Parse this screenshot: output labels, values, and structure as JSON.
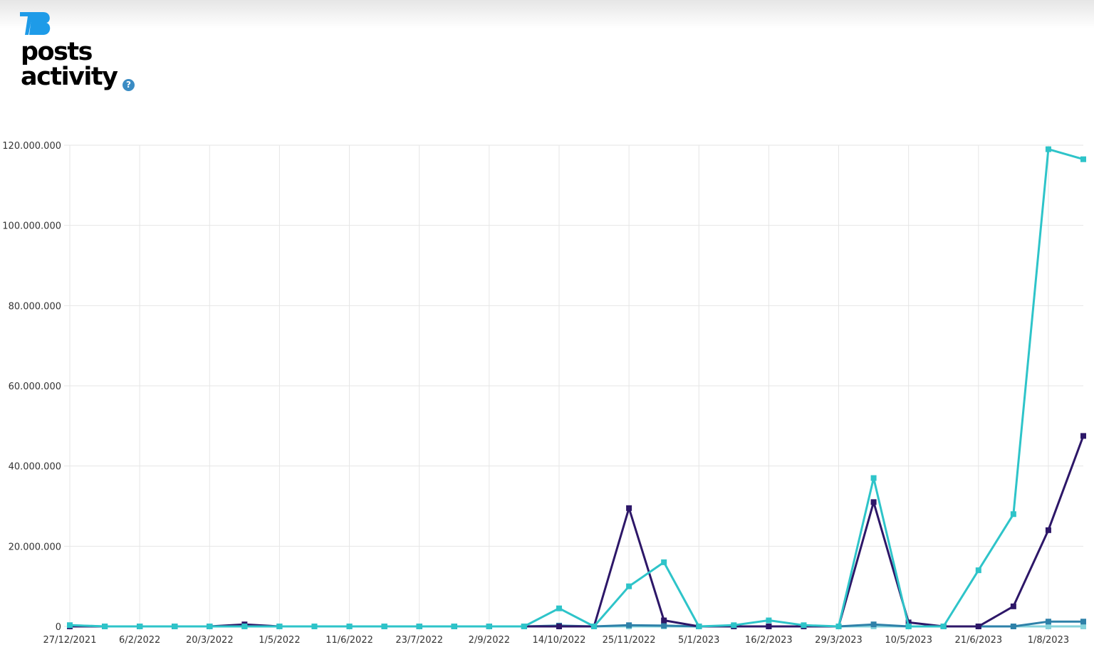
{
  "header": {
    "logo_text": "TB",
    "title_line1": "posts",
    "title_line2": "activity",
    "help_icon": "?"
  },
  "chart_data": {
    "type": "line",
    "title": "posts activity",
    "xlabel": "",
    "ylabel": "",
    "ylim": [
      0,
      120000000
    ],
    "yticks": [
      0,
      20000000,
      40000000,
      60000000,
      80000000,
      100000000,
      120000000
    ],
    "ytick_labels": [
      "0",
      "20.000.000",
      "40.000.000",
      "60.000.000",
      "80.000.000",
      "100.000.000",
      "120.000.000"
    ],
    "x_labels": [
      "27/12/2021",
      "6/2/2022",
      "20/3/2022",
      "1/5/2022",
      "11/6/2022",
      "23/7/2022",
      "2/9/2022",
      "14/10/2022",
      "25/11/2022",
      "5/1/2023",
      "16/2/2023",
      "29/3/2023",
      "10/5/2023",
      "21/6/2023",
      "1/8/2023"
    ],
    "num_points": 30,
    "grid": true,
    "series": [
      {
        "name": "series-light",
        "color": "#86d3db",
        "values": [
          300000,
          0,
          0,
          0,
          0,
          0,
          0,
          0,
          0,
          0,
          0,
          0,
          0,
          0,
          0,
          0,
          0,
          0,
          0,
          0,
          0,
          0,
          0,
          0,
          0,
          0,
          0,
          0,
          0,
          0
        ]
      },
      {
        "name": "series-blue",
        "color": "#2e81a9",
        "values": [
          0,
          0,
          0,
          0,
          0,
          0,
          0,
          0,
          0,
          0,
          0,
          0,
          0,
          0,
          200000,
          0,
          300000,
          200000,
          0,
          0,
          0,
          0,
          0,
          500000,
          0,
          0,
          0,
          0,
          1200000,
          1200000
        ]
      },
      {
        "name": "series-purple",
        "color": "#2d1768",
        "values": [
          0,
          0,
          0,
          0,
          0,
          500000,
          0,
          0,
          0,
          0,
          0,
          0,
          0,
          0,
          0,
          0,
          29500000,
          1500000,
          0,
          0,
          0,
          0,
          0,
          31000000,
          1000000,
          0,
          0,
          5000000,
          24000000,
          47500000
        ]
      },
      {
        "name": "series-teal",
        "color": "#2ec4c9",
        "values": [
          300000,
          0,
          0,
          0,
          0,
          0,
          0,
          0,
          0,
          0,
          0,
          0,
          0,
          0,
          4500000,
          0,
          10000000,
          16000000,
          0,
          300000,
          1500000,
          300000,
          0,
          37000000,
          0,
          0,
          14000000,
          28000000,
          119000000,
          116500000
        ]
      }
    ]
  }
}
